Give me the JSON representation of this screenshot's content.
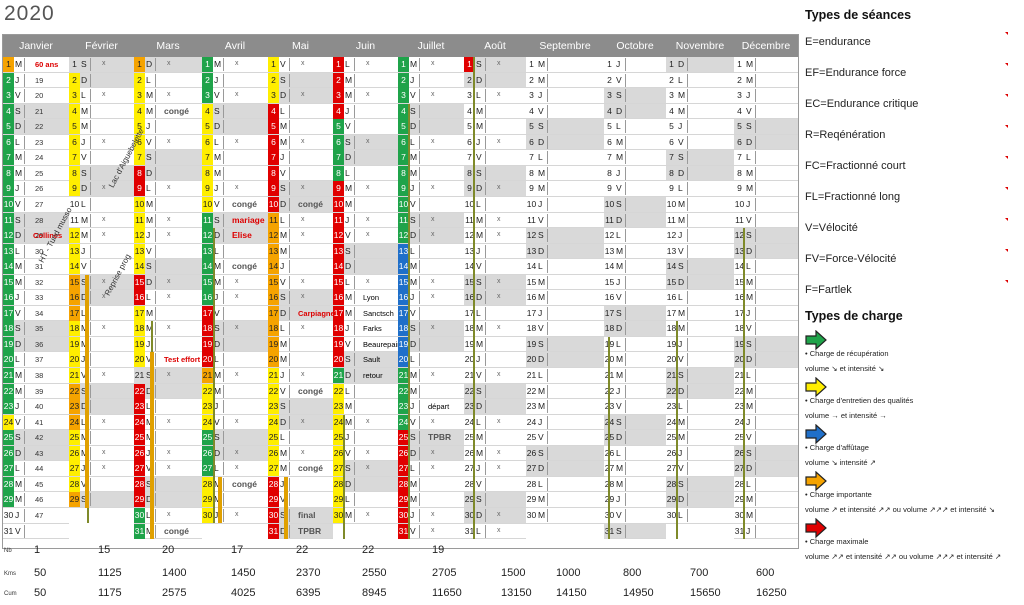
{
  "year": "2020",
  "months": [
    "Janvier",
    "Février",
    "Mars",
    "Avril",
    "Mai",
    "Juin",
    "Juillet",
    "Août",
    "Septembre",
    "Octobre",
    "Novembre",
    "Décembre"
  ],
  "days": [
    [
      "M",
      "J",
      "V",
      "S",
      "D",
      "L",
      "M",
      "M",
      "J",
      "V",
      "S",
      "D",
      "L",
      "M",
      "M",
      "J",
      "V",
      "S",
      "D",
      "L",
      "M",
      "M",
      "J",
      "V",
      "S",
      "D",
      "L",
      "M",
      "M",
      "J",
      "V"
    ],
    [
      "S",
      "D",
      "L",
      "M",
      "M",
      "J",
      "V",
      "S",
      "D",
      "L",
      "M",
      "M",
      "J",
      "V",
      "S",
      "D",
      "L",
      "M",
      "M",
      "J",
      "V",
      "S",
      "D",
      "L",
      "M",
      "M",
      "J",
      "V",
      "S"
    ],
    [
      "D",
      "L",
      "M",
      "M",
      "J",
      "V",
      "S",
      "D",
      "L",
      "M",
      "M",
      "J",
      "V",
      "S",
      "D",
      "L",
      "M",
      "M",
      "J",
      "V",
      "S",
      "D",
      "L",
      "M",
      "M",
      "J",
      "V",
      "S",
      "D",
      "L",
      "M"
    ],
    [
      "M",
      "J",
      "V",
      "S",
      "D",
      "L",
      "M",
      "M",
      "J",
      "V",
      "S",
      "D",
      "L",
      "M",
      "M",
      "J",
      "V",
      "S",
      "D",
      "L",
      "M",
      "M",
      "J",
      "V",
      "S",
      "D",
      "L",
      "M",
      "M",
      "J"
    ],
    [
      "V",
      "S",
      "D",
      "L",
      "M",
      "M",
      "J",
      "V",
      "S",
      "D",
      "L",
      "M",
      "M",
      "J",
      "V",
      "S",
      "D",
      "L",
      "M",
      "M",
      "J",
      "V",
      "S",
      "D",
      "L",
      "M",
      "M",
      "J",
      "V",
      "S",
      "D"
    ],
    [
      "L",
      "M",
      "M",
      "J",
      "V",
      "S",
      "D",
      "L",
      "M",
      "M",
      "J",
      "V",
      "S",
      "D",
      "L",
      "M",
      "M",
      "J",
      "V",
      "S",
      "D",
      "L",
      "M",
      "M",
      "J",
      "V",
      "S",
      "D",
      "L",
      "M"
    ],
    [
      "M",
      "J",
      "V",
      "S",
      "D",
      "L",
      "M",
      "M",
      "J",
      "V",
      "S",
      "D",
      "L",
      "M",
      "M",
      "J",
      "V",
      "S",
      "D",
      "L",
      "M",
      "M",
      "J",
      "V",
      "S",
      "D",
      "L",
      "M",
      "M",
      "J",
      "V"
    ],
    [
      "S",
      "D",
      "L",
      "M",
      "M",
      "J",
      "V",
      "S",
      "D",
      "L",
      "M",
      "M",
      "J",
      "V",
      "S",
      "D",
      "L",
      "M",
      "M",
      "J",
      "V",
      "S",
      "D",
      "L",
      "M",
      "M",
      "J",
      "V",
      "S",
      "D",
      "L"
    ],
    [
      "M",
      "M",
      "J",
      "V",
      "S",
      "D",
      "L",
      "M",
      "M",
      "J",
      "V",
      "S",
      "D",
      "L",
      "M",
      "M",
      "J",
      "V",
      "S",
      "D",
      "L",
      "M",
      "M",
      "J",
      "V",
      "S",
      "D",
      "L",
      "M",
      "M"
    ],
    [
      "J",
      "V",
      "S",
      "D",
      "L",
      "M",
      "M",
      "J",
      "V",
      "S",
      "D",
      "L",
      "M",
      "M",
      "J",
      "V",
      "S",
      "D",
      "L",
      "M",
      "M",
      "J",
      "V",
      "S",
      "D",
      "L",
      "M",
      "M",
      "J",
      "V",
      "S"
    ],
    [
      "D",
      "L",
      "M",
      "M",
      "J",
      "V",
      "S",
      "D",
      "L",
      "M",
      "M",
      "J",
      "V",
      "S",
      "D",
      "L",
      "M",
      "M",
      "J",
      "V",
      "S",
      "D",
      "L",
      "M",
      "M",
      "J",
      "V",
      "S",
      "D",
      "L"
    ],
    [
      "M",
      "M",
      "J",
      "V",
      "S",
      "D",
      "L",
      "M",
      "M",
      "J",
      "V",
      "S",
      "D",
      "L",
      "M",
      "M",
      "J",
      "V",
      "S",
      "D",
      "L",
      "M",
      "M",
      "J",
      "V",
      "S",
      "D",
      "L",
      "M",
      "M",
      "J"
    ]
  ],
  "week_numbers": [
    "1",
    "19",
    "20",
    "21",
    "22",
    "23",
    "24",
    "25",
    "26",
    "27",
    "28",
    "29",
    "30",
    "31",
    "32",
    "33",
    "34",
    "35",
    "36",
    "37",
    "38",
    "39",
    "40",
    "41",
    "42",
    "43",
    "44",
    "45",
    "46",
    "47"
  ],
  "day_notes": {
    "jan": {
      "1": "60 ans",
      "12": "Collines"
    },
    "mar": {
      "4": "congé",
      "20": "Test effort",
      "31": "congé"
    },
    "apr": {
      "10": "congé",
      "11": "mariage",
      "12": "Elise",
      "14": "congé",
      "28": "congé"
    },
    "may": {
      "10": "congé",
      "17": "Carpiagne",
      "22": "congé",
      "27": "congé",
      "30": "final",
      "31": "TPBR"
    },
    "jun": {
      "16": "Lyon",
      "17": "Sanctsch",
      "18": "Farks",
      "19": "Beaurepaire",
      "20": "Sault",
      "21": "retour"
    },
    "jul": {
      "23": "départ",
      "25": "TPBR"
    }
  },
  "side_labels": {
    "feb_top": "Lac d'Aiguebelette",
    "feb_mid": "Reprise prog",
    "jan_mid": "HT - Tund musso"
  },
  "footer": {
    "nb_label": "Nb",
    "km_label": "Kms",
    "cum_label": "Cum",
    "nb": [
      "1",
      "15",
      "20",
      "17",
      "22",
      "22",
      "19",
      "",
      "",
      "",
      "",
      ""
    ],
    "km": [
      "50",
      "1125",
      "1400",
      "1450",
      "2370",
      "2550",
      "2705",
      "1500",
      "1000",
      "800",
      "700",
      "600"
    ],
    "cum": [
      "50",
      "1175",
      "2575",
      "4025",
      "6395",
      "8945",
      "11650",
      "13150",
      "14150",
      "14950",
      "15650",
      "16250"
    ]
  },
  "legend": {
    "seances_title": "Types de séances",
    "seances": [
      "E=endurance",
      "EF=Endurance force",
      "EC=Endurance critique",
      "R=Reqénération",
      "FC=Fractionné court",
      "FL=Fractionné long",
      "V=Vélocité",
      "FV=Force-Vélocité",
      "F=Fartlek"
    ],
    "charge_title": "Types de charge",
    "charges": [
      {
        "color": "#1fa34a",
        "l1": "• Charge de récupération",
        "l2": "volume ↘ et intensité ↘"
      },
      {
        "color": "#ffee00",
        "l1": "• Charge d'entretien des qualités",
        "l2": "volume → et intensité →"
      },
      {
        "color": "#1f6fc9",
        "l1": "• Charge d'affûtage",
        "l2": "volume ↘ intensité ↗"
      },
      {
        "color": "#f5a300",
        "l1": "• Charge importante",
        "l2": "volume ↗ et intensité ↗↗ ou volume ↗↗↗ et intensité ↘"
      },
      {
        "color": "#e00000",
        "l1": "• Charge maximale",
        "l2": "volume ↗↗ et intensité ↗↗ ou volume ↗↗↗ et intensité ↗"
      }
    ]
  },
  "colors": {
    "green": "#1fa34a",
    "yellow": "#ffee00",
    "blue": "#1f6fc9",
    "orange": "#f5a300",
    "red": "#e00000",
    "weekend": "#d9d9d9",
    "header": "#8c8c8c"
  }
}
